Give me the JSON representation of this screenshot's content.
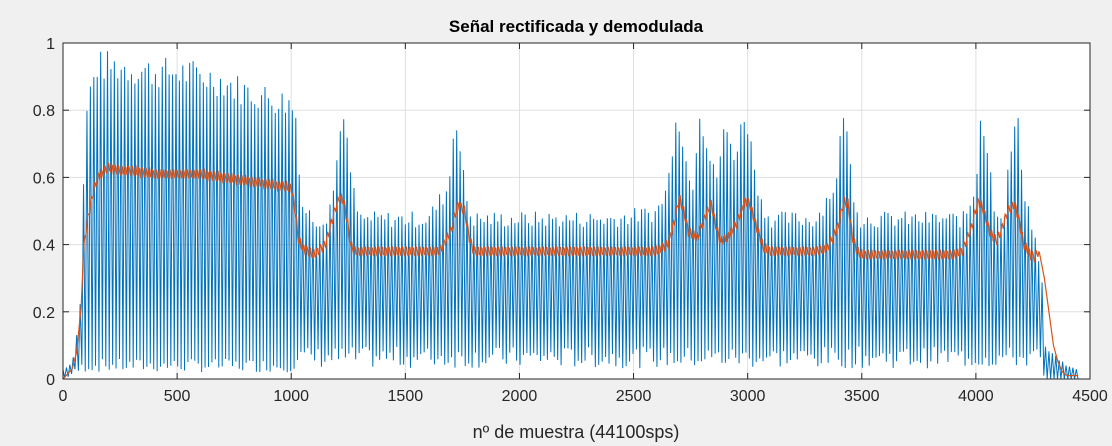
{
  "chart_data": {
    "type": "line",
    "title": "Señal rectificada y demodulada",
    "xlabel": "nº de muestra (44100sps)",
    "ylabel": "",
    "xlim": [
      0,
      4500
    ],
    "ylim": [
      0,
      1
    ],
    "grid": true,
    "legend": "none",
    "x_ticks": [
      0,
      500,
      1000,
      1500,
      2000,
      2500,
      3000,
      3500,
      4000,
      4500
    ],
    "y_ticks": [
      0,
      0.2,
      0.4,
      0.6,
      0.8,
      1
    ],
    "x_tick_labels": [
      "0",
      "500",
      "1000",
      "1500",
      "2000",
      "2500",
      "3000",
      "3500",
      "4000",
      "4500"
    ],
    "y_tick_labels": [
      "0",
      "0.2",
      "0.4",
      "0.6",
      "0.8",
      "1"
    ],
    "colors": {
      "rectified": "#0072BD",
      "demodulated": "#D95319",
      "grid": "#dfdfdf",
      "axes_background": "#ffffff",
      "figure_background": "#f0f0f0"
    },
    "series": [
      {
        "color_key": "rectified",
        "description": "oscillating rectified signal; peaks are upper envelope, troughs lower envelope",
        "oscillation_period_samples": 15,
        "upper_envelope": {
          "x": [
            0,
            40,
            70,
            80,
            90,
            100,
            120,
            150,
            200,
            300,
            400,
            500,
            600,
            700,
            800,
            900,
            1000,
            1030,
            1040,
            1100,
            1150,
            1190,
            1220,
            1250,
            1280,
            1300,
            1400,
            1500,
            1600,
            1690,
            1720,
            1750,
            1780,
            1800,
            2000,
            2200,
            2400,
            2600,
            2650,
            2690,
            2720,
            2760,
            2790,
            2830,
            2860,
            2900,
            2950,
            2990,
            3020,
            3060,
            3100,
            3300,
            3390,
            3420,
            3460,
            3490,
            3600,
            3800,
            3950,
            4000,
            4020,
            4050,
            4080,
            4120,
            4150,
            4180,
            4210,
            4240,
            4270,
            4290,
            4300,
            4400,
            4450
          ],
          "y": [
            0.03,
            0.05,
            0.18,
            0.3,
            0.6,
            0.82,
            0.9,
            0.98,
            0.98,
            0.97,
            0.96,
            0.96,
            0.95,
            0.93,
            0.9,
            0.88,
            0.86,
            0.8,
            0.55,
            0.5,
            0.5,
            0.6,
            0.85,
            0.7,
            0.55,
            0.5,
            0.5,
            0.5,
            0.5,
            0.6,
            0.85,
            0.65,
            0.52,
            0.5,
            0.5,
            0.5,
            0.5,
            0.52,
            0.6,
            0.87,
            0.7,
            0.62,
            0.85,
            0.7,
            0.62,
            0.78,
            0.7,
            0.85,
            0.7,
            0.55,
            0.5,
            0.5,
            0.62,
            0.85,
            0.6,
            0.5,
            0.5,
            0.5,
            0.5,
            0.6,
            0.84,
            0.72,
            0.55,
            0.5,
            0.7,
            0.82,
            0.6,
            0.5,
            0.4,
            0.3,
            0.1,
            0.04,
            0.03
          ],
          "x_peak_note": ""
        },
        "lower_envelope": {
          "x": [
            0,
            100,
            200,
            1000,
            1030,
            4280,
            4300,
            4450
          ],
          "y": [
            0.0,
            0.05,
            0.05,
            0.05,
            0.08,
            0.08,
            0.0,
            0.0
          ]
        }
      },
      {
        "color_key": "demodulated",
        "description": "demodulated envelope with small ripple",
        "ripple_amplitude": 0.015,
        "x": [
          0,
          40,
          60,
          70,
          80,
          90,
          100,
          120,
          150,
          200,
          250,
          300,
          400,
          500,
          600,
          700,
          800,
          900,
          1000,
          1010,
          1020,
          1030,
          1050,
          1100,
          1150,
          1190,
          1210,
          1230,
          1250,
          1260,
          1280,
          1300,
          1400,
          1500,
          1600,
          1650,
          1700,
          1730,
          1760,
          1780,
          1800,
          2000,
          2200,
          2400,
          2600,
          2650,
          2680,
          2700,
          2720,
          2740,
          2780,
          2810,
          2840,
          2860,
          2880,
          2910,
          2950,
          2990,
          3010,
          3040,
          3070,
          3100,
          3200,
          3300,
          3350,
          3400,
          3420,
          3440,
          3460,
          3480,
          3500,
          3600,
          3700,
          3800,
          3900,
          3940,
          3980,
          4010,
          4030,
          4060,
          4090,
          4110,
          4140,
          4170,
          4190,
          4210,
          4240,
          4260,
          4270,
          4280,
          4300,
          4320,
          4340,
          4360,
          4380,
          4400,
          4450
        ],
        "y": [
          0.0,
          0.03,
          0.08,
          0.15,
          0.22,
          0.38,
          0.44,
          0.52,
          0.6,
          0.63,
          0.62,
          0.62,
          0.61,
          0.61,
          0.61,
          0.6,
          0.59,
          0.58,
          0.57,
          0.53,
          0.49,
          0.42,
          0.39,
          0.37,
          0.4,
          0.5,
          0.54,
          0.53,
          0.45,
          0.4,
          0.38,
          0.38,
          0.38,
          0.38,
          0.38,
          0.38,
          0.44,
          0.52,
          0.5,
          0.42,
          0.38,
          0.38,
          0.38,
          0.38,
          0.38,
          0.4,
          0.47,
          0.54,
          0.5,
          0.44,
          0.42,
          0.48,
          0.52,
          0.46,
          0.41,
          0.42,
          0.46,
          0.53,
          0.52,
          0.45,
          0.39,
          0.38,
          0.38,
          0.38,
          0.39,
          0.46,
          0.53,
          0.52,
          0.42,
          0.38,
          0.37,
          0.37,
          0.37,
          0.37,
          0.37,
          0.38,
          0.45,
          0.53,
          0.51,
          0.44,
          0.41,
          0.44,
          0.5,
          0.52,
          0.47,
          0.4,
          0.37,
          0.36,
          0.38,
          0.37,
          0.3,
          0.2,
          0.1,
          0.05,
          0.02,
          0.01,
          0.01
        ]
      }
    ]
  }
}
